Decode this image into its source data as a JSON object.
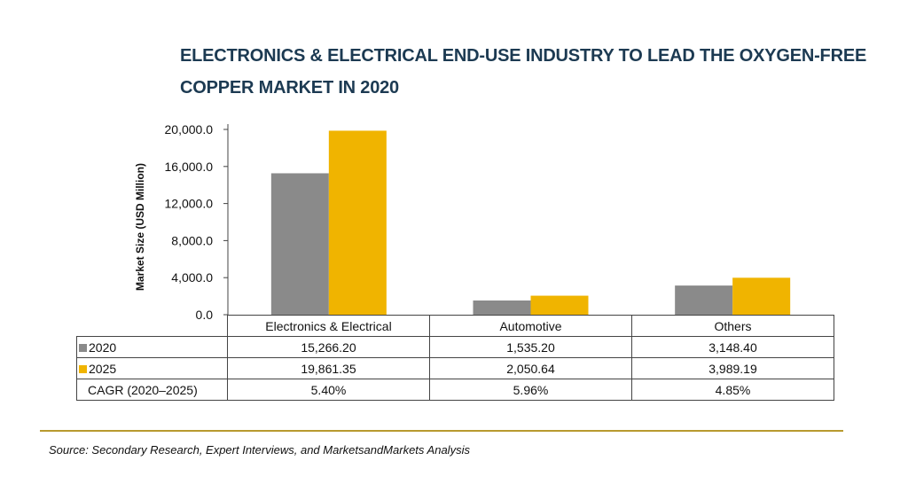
{
  "title": {
    "line1": "ELECTRONICS & ELECTRICAL END-USE INDUSTRY TO LEAD THE OXYGEN-FREE",
    "line2": "COPPER MARKET IN 2020"
  },
  "colors": {
    "series_2020": "#8a8a8a",
    "series_2025": "#f0b400",
    "title": "#1c3a52",
    "rule": "#b89a2f"
  },
  "chart_data": {
    "type": "bar",
    "title": "ELECTRONICS & ELECTRICAL END-USE INDUSTRY TO LEAD THE OXYGEN-FREE COPPER MARKET IN 2020",
    "categories": [
      "Electronics & Electrical",
      "Automotive",
      "Others"
    ],
    "series": [
      {
        "name": "2020",
        "values": [
          15266.2,
          1535.2,
          3148.4
        ]
      },
      {
        "name": "2025",
        "values": [
          19861.35,
          2050.64,
          3989.19
        ]
      }
    ],
    "ylabel": "Market Size (USD Million)",
    "ylim": [
      0,
      20000
    ],
    "yticks": [
      "20,000.0",
      "16,000.0",
      "12,000.0",
      "8,000.0",
      "4,000.0",
      "0.0"
    ],
    "ytick_values": [
      20000,
      16000,
      12000,
      8000,
      4000,
      0
    ],
    "grid": false,
    "legend": "in data table"
  },
  "table": {
    "categories": [
      "Electronics & Electrical",
      "Automotive",
      "Others"
    ],
    "rows": [
      {
        "label": "2020",
        "swatch": "2020",
        "values": [
          "15,266.20",
          "1,535.20",
          "3,148.40"
        ]
      },
      {
        "label": "2025",
        "swatch": "2025",
        "values": [
          "19,861.35",
          "2,050.64",
          "3,989.19"
        ]
      },
      {
        "label": "CAGR (2020–2025)",
        "values": [
          "5.40%",
          "5.96%",
          "4.85%"
        ]
      }
    ]
  },
  "source": "Source: Secondary Research, Expert Interviews, and MarketsandMarkets Analysis"
}
